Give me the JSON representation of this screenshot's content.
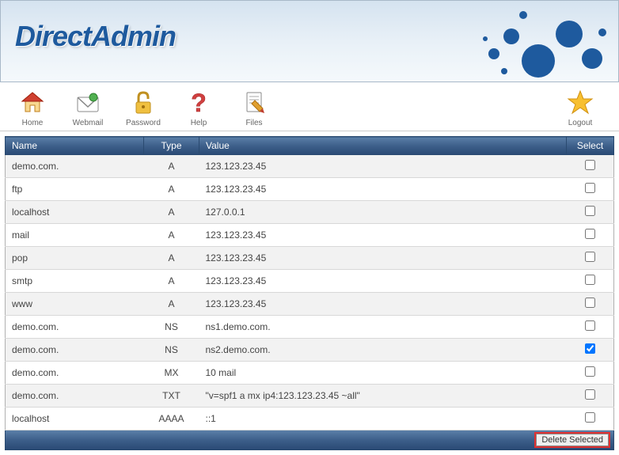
{
  "logo_text": "DirectAdmin",
  "header": {
    "bg_gradient": [
      "#d5e3f0",
      "#e8f0f7",
      "#f5f9fc"
    ],
    "dot_color": "#1e5a9e",
    "logo_color": "#1e5a9e"
  },
  "toolbar": {
    "items": [
      {
        "id": "home",
        "label": "Home"
      },
      {
        "id": "webmail",
        "label": "Webmail"
      },
      {
        "id": "password",
        "label": "Password"
      },
      {
        "id": "help",
        "label": "Help"
      },
      {
        "id": "files",
        "label": "Files"
      }
    ],
    "right": {
      "id": "logout",
      "label": "Logout"
    }
  },
  "table": {
    "headers": {
      "name": "Name",
      "type": "Type",
      "value": "Value",
      "select": "Select"
    },
    "header_bg": [
      "#5b7fa8",
      "#3d5f8a",
      "#2a4a75"
    ],
    "row_alt_bg": [
      "#f2f2f2",
      "#ffffff"
    ],
    "rows": [
      {
        "name": "demo.com.",
        "type": "A",
        "value": "123.123.23.45",
        "checked": false
      },
      {
        "name": "ftp",
        "type": "A",
        "value": "123.123.23.45",
        "checked": false
      },
      {
        "name": "localhost",
        "type": "A",
        "value": "127.0.0.1",
        "checked": false
      },
      {
        "name": "mail",
        "type": "A",
        "value": "123.123.23.45",
        "checked": false
      },
      {
        "name": "pop",
        "type": "A",
        "value": "123.123.23.45",
        "checked": false
      },
      {
        "name": "smtp",
        "type": "A",
        "value": "123.123.23.45",
        "checked": false
      },
      {
        "name": "www",
        "type": "A",
        "value": "123.123.23.45",
        "checked": false
      },
      {
        "name": "demo.com.",
        "type": "NS",
        "value": "ns1.demo.com.",
        "checked": false
      },
      {
        "name": "demo.com.",
        "type": "NS",
        "value": "ns2.demo.com.",
        "checked": true
      },
      {
        "name": "demo.com.",
        "type": "MX",
        "value": "10 mail",
        "checked": false
      },
      {
        "name": "demo.com.",
        "type": "TXT",
        "value": "\"v=spf1 a mx ip4:123.123.23.45 ~all\"",
        "checked": false
      },
      {
        "name": "localhost",
        "type": "AAAA",
        "value": "::1",
        "checked": false
      }
    ],
    "delete_button": "Delete Selected"
  }
}
